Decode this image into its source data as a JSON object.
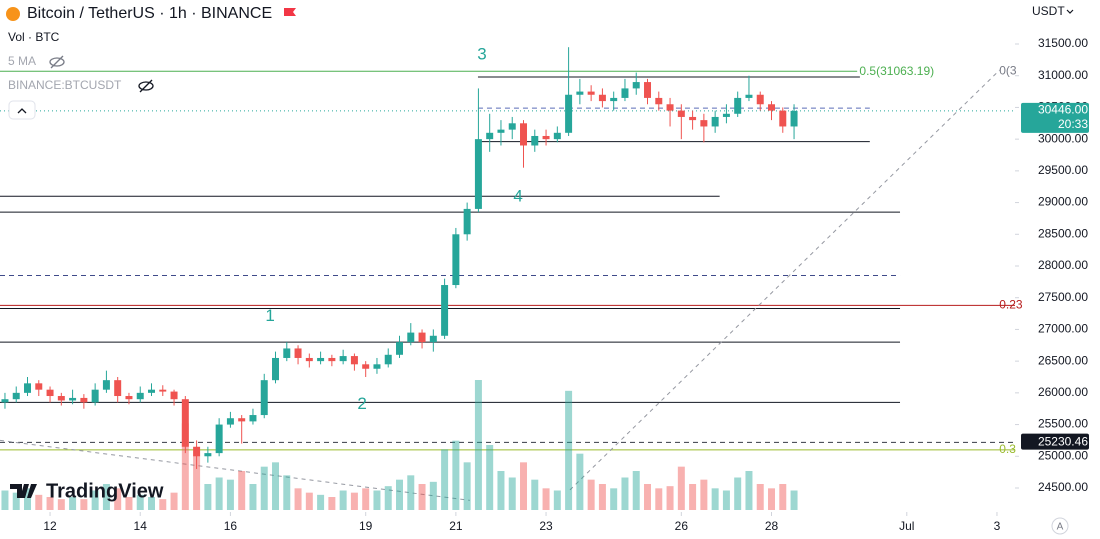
{
  "chart_data": {
    "type": "candlestick",
    "title": "Bitcoin / TetherUS · 1h · BINANCE",
    "volume_label": "Vol · BTC",
    "ma_label": "5 MA",
    "symbol_label": "BINANCE:BTCUSDT",
    "currency": "USDT",
    "brand": "TradingView",
    "corner_button": "A",
    "up_color": "#26a69a",
    "down_color": "#ef5350",
    "x": [
      11.0,
      11.25,
      11.5,
      11.75,
      12.0,
      12.25,
      12.5,
      12.75,
      13.0,
      13.25,
      13.5,
      13.75,
      14.0,
      14.25,
      14.5,
      14.75,
      15.0,
      15.25,
      15.5,
      15.75,
      16.0,
      16.25,
      16.5,
      16.75,
      17.0,
      17.25,
      17.5,
      17.75,
      18.0,
      18.25,
      18.5,
      18.75,
      19.0,
      19.25,
      19.5,
      19.75,
      20.0,
      20.25,
      20.5,
      20.75,
      21.0,
      21.25,
      21.5,
      21.75,
      22.0,
      22.25,
      22.5,
      22.75,
      23.0,
      23.25,
      23.5,
      23.75,
      24.0,
      24.25,
      24.5,
      24.75,
      25.0,
      25.25,
      25.5,
      25.75,
      26.0,
      26.25,
      26.5,
      26.75,
      27.0,
      27.25,
      27.5,
      27.75,
      28.0,
      28.25,
      28.5
    ],
    "open": [
      25850,
      25900,
      26000,
      26150,
      26050,
      25950,
      25880,
      25920,
      25850,
      26050,
      26200,
      25950,
      25900,
      26000,
      26050,
      26020,
      25900,
      25150,
      25000,
      25050,
      25500,
      25600,
      25550,
      25650,
      26200,
      26550,
      26700,
      26550,
      26500,
      26550,
      26500,
      26580,
      26450,
      26380,
      26450,
      26600,
      26800,
      26950,
      26800,
      26900,
      27700,
      28500,
      28900,
      30000,
      30100,
      30150,
      30250,
      29900,
      30050,
      30000,
      30100,
      30700,
      30750,
      30700,
      30600,
      30650,
      30800,
      30900,
      30650,
      30550,
      30450,
      30350,
      30300,
      30200,
      30350,
      30400,
      30650,
      30700,
      30550,
      30450,
      30200
    ],
    "high": [
      26000,
      26100,
      26250,
      26200,
      26100,
      26000,
      26050,
      25980,
      26150,
      26350,
      26250,
      26000,
      26100,
      26150,
      26120,
      26050,
      25950,
      25250,
      25150,
      25600,
      25700,
      25650,
      25750,
      26300,
      26650,
      26800,
      26750,
      26620,
      26650,
      26600,
      26680,
      26620,
      26500,
      26550,
      26700,
      26900,
      27100,
      27000,
      27000,
      27800,
      28600,
      29000,
      30800,
      30400,
      30300,
      30350,
      30300,
      30150,
      30150,
      30200,
      31450,
      30950,
      30850,
      30800,
      30750,
      30950,
      31050,
      30950,
      30750,
      30650,
      30550,
      30450,
      30400,
      30450,
      30550,
      30750,
      31000,
      30750,
      30600,
      30500,
      30550
    ],
    "low": [
      25750,
      25850,
      25950,
      25950,
      25850,
      25800,
      25820,
      25750,
      25800,
      26000,
      25850,
      25820,
      25850,
      25950,
      25950,
      25800,
      25050,
      24800,
      24900,
      25000,
      25450,
      25200,
      25500,
      25600,
      26150,
      26500,
      26450,
      26400,
      26450,
      26420,
      26450,
      26350,
      26250,
      26300,
      26400,
      26550,
      26750,
      26700,
      26650,
      26850,
      27650,
      28400,
      28850,
      29800,
      29900,
      30000,
      29550,
      29800,
      29900,
      29950,
      30050,
      30550,
      30600,
      30500,
      30450,
      30600,
      30700,
      30550,
      30450,
      30200,
      30000,
      30150,
      29950,
      30100,
      30250,
      30350,
      30600,
      30450,
      30300,
      30100,
      30000
    ],
    "close": [
      25900,
      26000,
      26150,
      26050,
      25950,
      25880,
      25920,
      25850,
      26050,
      26200,
      25950,
      25900,
      26000,
      26050,
      26020,
      25900,
      25150,
      25000,
      25050,
      25500,
      25600,
      25550,
      25650,
      26200,
      26550,
      26700,
      26550,
      26500,
      26550,
      26500,
      26580,
      26450,
      26380,
      26450,
      26600,
      26800,
      26950,
      26800,
      26900,
      27700,
      28500,
      28900,
      30000,
      30100,
      30150,
      30250,
      29900,
      30050,
      30000,
      30100,
      30700,
      30750,
      30700,
      30600,
      30650,
      30800,
      30900,
      30650,
      30550,
      30450,
      30350,
      30300,
      30200,
      30350,
      30400,
      30650,
      30700,
      30550,
      30450,
      30200,
      30446
    ],
    "volume": [
      9000,
      8000,
      10000,
      7000,
      6000,
      5000,
      6000,
      5000,
      9000,
      12000,
      10000,
      6000,
      7000,
      6000,
      5000,
      8000,
      40000,
      25000,
      12000,
      15000,
      14000,
      18000,
      12000,
      20000,
      22000,
      16000,
      10000,
      8000,
      7000,
      6000,
      9000,
      8000,
      10000,
      9000,
      11000,
      14000,
      16000,
      12000,
      13000,
      28000,
      32000,
      22000,
      60000,
      30000,
      18000,
      15000,
      22000,
      14000,
      10000,
      9000,
      55000,
      26000,
      14000,
      12000,
      10000,
      15000,
      18000,
      12000,
      10000,
      11000,
      20000,
      12000,
      14000,
      10000,
      9000,
      15000,
      18000,
      12000,
      10000,
      12000,
      9000
    ],
    "vlim": [
      0,
      60000
    ],
    "xlim": [
      10.89,
      33.4
    ],
    "xticks": [
      12,
      14,
      16,
      19,
      21,
      23,
      26,
      28,
      {
        "value": 31,
        "label": "Jul"
      },
      {
        "value": 33,
        "label": "3"
      }
    ],
    "ylim": [
      24000,
      32000
    ],
    "yticks": [
      {
        "value": 31500,
        "label": "31500.00"
      },
      {
        "value": 31000,
        "label": "31000.00"
      },
      {
        "value": 30500,
        "label": "30500.00"
      },
      {
        "value": 30000,
        "label": "30000.00"
      },
      {
        "value": 29500,
        "label": "29500.00"
      },
      {
        "value": 29000,
        "label": "29000.00"
      },
      {
        "value": 28500,
        "label": "28500.00"
      },
      {
        "value": 28000,
        "label": "28000.00"
      },
      {
        "value": 27500,
        "label": "27500.00"
      },
      {
        "value": 27000,
        "label": "27000.00"
      },
      {
        "value": 26500,
        "label": "26500.00"
      },
      {
        "value": 26000,
        "label": "26000.00"
      },
      {
        "value": 25500,
        "label": "25500.00"
      },
      {
        "value": 25000,
        "label": "25000.00"
      },
      {
        "value": 24500,
        "label": "24500.00"
      }
    ],
    "last_price": {
      "value": 30446,
      "label": "30446.00",
      "countdown": "20:33"
    },
    "marker_price": {
      "value": 25230.46,
      "label": "25230.46"
    },
    "levels": [
      {
        "price": 31070,
        "from": 10.89,
        "to": 29.9,
        "color": "#4caf50",
        "dash": false
      },
      {
        "price": 30980,
        "from": 21.49,
        "to": 29.96,
        "color": "#131722",
        "dash": false
      },
      {
        "price": 30490,
        "from": 21.49,
        "to": 30.18,
        "color": "#5b6cb8",
        "dash": true
      },
      {
        "price": 29960,
        "from": 21.49,
        "to": 30.18,
        "color": "#131722",
        "dash": false
      },
      {
        "price": 29100,
        "from": 10.89,
        "to": 26.85,
        "color": "#131722",
        "dash": false
      },
      {
        "price": 28850,
        "from": 10.89,
        "to": 30.85,
        "color": "#131722",
        "dash": false
      },
      {
        "price": 27850,
        "from": 10.89,
        "to": 30.85,
        "color": "#3f4a8a",
        "dash": true
      },
      {
        "price": 27380,
        "from": 10.89,
        "to": 33.4,
        "color": "#b71c1c",
        "dash": false
      },
      {
        "price": 27330,
        "from": 10.89,
        "to": 30.85,
        "color": "#131722",
        "dash": false
      },
      {
        "price": 26800,
        "from": 10.89,
        "to": 30.85,
        "color": "#131722",
        "dash": false
      },
      {
        "price": 25850,
        "from": 10.89,
        "to": 30.85,
        "color": "#131722",
        "dash": false
      },
      {
        "price": 25220,
        "from": 10.89,
        "to": 33.4,
        "color": "#363a45",
        "dash": true
      },
      {
        "price": 25100,
        "from": 10.89,
        "to": 33.4,
        "color": "#9bbb2f",
        "dash": false
      }
    ],
    "trendlines": [
      {
        "from": [
          23.53,
          24470
        ],
        "to": [
          33.06,
          31090
        ]
      },
      {
        "from": [
          10.89,
          25250
        ],
        "to": [
          21.31,
          24305
        ]
      }
    ],
    "fib_labels": [
      {
        "text": "0.5(31063.19)",
        "day": 29.95,
        "price": 31063.19,
        "color": "#4caf50"
      },
      {
        "text": "0(3",
        "day": 33.05,
        "price": 31070,
        "color": "#787b86"
      },
      {
        "text": "0.23",
        "day": 33.05,
        "price": 27380,
        "color": "#b71c1c"
      },
      {
        "text": "0.3",
        "day": 33.05,
        "price": 25100,
        "color": "#9bbb2f"
      }
    ],
    "waves": [
      {
        "text": "1",
        "day": 16.88,
        "price": 27200
      },
      {
        "text": "2",
        "day": 18.92,
        "price": 25820
      },
      {
        "text": "3",
        "day": 21.58,
        "price": 31330
      },
      {
        "text": "4",
        "day": 22.38,
        "price": 29090
      }
    ]
  }
}
